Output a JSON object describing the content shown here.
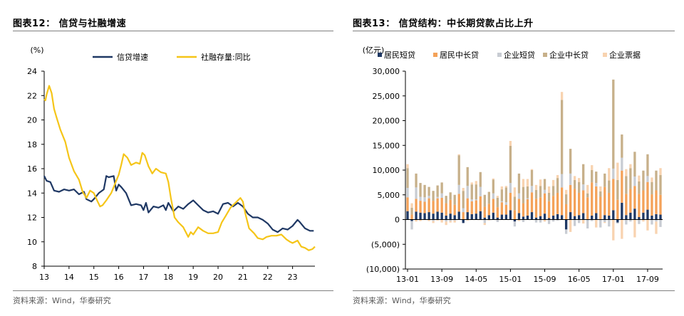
{
  "left": {
    "title": "图表12：  信贷与社融增速",
    "source": "资料来源：Wind，华泰研究"
  },
  "right": {
    "title": "图表13：  信贷结构：中长期贷款占比上升",
    "source": "资料来源：Wind，华泰研究"
  },
  "colors": {
    "navy": "#1f3864",
    "gold": "#f5c518",
    "orange": "#f4a259",
    "lightgray": "#c8ccd3",
    "tan": "#c7b08a",
    "peach": "#f8d3b0"
  },
  "chart_data": [
    {
      "type": "line",
      "ylabel": "(%)",
      "ylim": [
        8,
        24
      ],
      "yticks": [
        8,
        10,
        12,
        14,
        16,
        18,
        20,
        22,
        24
      ],
      "xlim": [
        2013,
        2023.9
      ],
      "xticks": [
        "13",
        "14",
        "15",
        "16",
        "17",
        "18",
        "19",
        "20",
        "21",
        "22",
        "23"
      ],
      "legend": "top",
      "series": [
        {
          "name": "信贷增速",
          "color": "#1f3864",
          "points": [
            [
              2013.0,
              15.4
            ],
            [
              2013.1,
              15.0
            ],
            [
              2013.25,
              14.9
            ],
            [
              2013.4,
              14.2
            ],
            [
              2013.6,
              14.1
            ],
            [
              2013.8,
              14.3
            ],
            [
              2014.0,
              14.2
            ],
            [
              2014.2,
              14.3
            ],
            [
              2014.4,
              13.9
            ],
            [
              2014.6,
              14.1
            ],
            [
              2014.7,
              13.5
            ],
            [
              2014.9,
              13.3
            ],
            [
              2015.0,
              13.5
            ],
            [
              2015.2,
              14.0
            ],
            [
              2015.4,
              14.3
            ],
            [
              2015.5,
              15.4
            ],
            [
              2015.6,
              15.3
            ],
            [
              2015.8,
              15.4
            ],
            [
              2015.9,
              14.2
            ],
            [
              2016.0,
              14.7
            ],
            [
              2016.1,
              14.5
            ],
            [
              2016.3,
              14.0
            ],
            [
              2016.5,
              13.0
            ],
            [
              2016.7,
              13.1
            ],
            [
              2016.9,
              13.0
            ],
            [
              2017.0,
              12.6
            ],
            [
              2017.1,
              13.2
            ],
            [
              2017.2,
              12.4
            ],
            [
              2017.4,
              12.9
            ],
            [
              2017.6,
              12.8
            ],
            [
              2017.8,
              13.0
            ],
            [
              2017.9,
              12.6
            ],
            [
              2018.0,
              13.2
            ],
            [
              2018.2,
              12.5
            ],
            [
              2018.4,
              12.9
            ],
            [
              2018.6,
              12.7
            ],
            [
              2018.8,
              13.1
            ],
            [
              2019.0,
              13.4
            ],
            [
              2019.2,
              13.0
            ],
            [
              2019.4,
              12.6
            ],
            [
              2019.6,
              12.4
            ],
            [
              2019.8,
              12.5
            ],
            [
              2020.0,
              12.3
            ],
            [
              2020.2,
              13.1
            ],
            [
              2020.4,
              13.2
            ],
            [
              2020.6,
              12.9
            ],
            [
              2020.8,
              13.2
            ],
            [
              2021.0,
              12.9
            ],
            [
              2021.2,
              12.3
            ],
            [
              2021.4,
              12.0
            ],
            [
              2021.6,
              12.0
            ],
            [
              2021.8,
              11.8
            ],
            [
              2022.0,
              11.5
            ],
            [
              2022.2,
              11.0
            ],
            [
              2022.4,
              10.8
            ],
            [
              2022.6,
              11.1
            ],
            [
              2022.8,
              11.0
            ],
            [
              2023.0,
              11.3
            ],
            [
              2023.2,
              11.8
            ],
            [
              2023.3,
              11.6
            ],
            [
              2023.5,
              11.1
            ],
            [
              2023.7,
              10.9
            ],
            [
              2023.85,
              10.9
            ]
          ]
        },
        {
          "name": "社融存量:同比",
          "color": "#f5c518",
          "points": [
            [
              2013.0,
              21.7
            ],
            [
              2013.05,
              21.6
            ],
            [
              2013.1,
              22.1
            ],
            [
              2013.2,
              22.8
            ],
            [
              2013.3,
              22.2
            ],
            [
              2013.4,
              20.9
            ],
            [
              2013.5,
              20.2
            ],
            [
              2013.65,
              19.2
            ],
            [
              2013.85,
              18.2
            ],
            [
              2014.0,
              16.9
            ],
            [
              2014.2,
              15.8
            ],
            [
              2014.4,
              15.1
            ],
            [
              2014.55,
              14.1
            ],
            [
              2014.7,
              13.6
            ],
            [
              2014.85,
              14.2
            ],
            [
              2015.0,
              14.0
            ],
            [
              2015.15,
              13.3
            ],
            [
              2015.25,
              12.9
            ],
            [
              2015.35,
              13.0
            ],
            [
              2015.5,
              13.4
            ],
            [
              2015.7,
              14.0
            ],
            [
              2015.9,
              15.0
            ],
            [
              2016.0,
              15.5
            ],
            [
              2016.1,
              16.3
            ],
            [
              2016.2,
              17.2
            ],
            [
              2016.35,
              16.9
            ],
            [
              2016.5,
              16.3
            ],
            [
              2016.7,
              16.5
            ],
            [
              2016.85,
              16.4
            ],
            [
              2016.95,
              17.3
            ],
            [
              2017.05,
              17.1
            ],
            [
              2017.2,
              16.2
            ],
            [
              2017.35,
              15.6
            ],
            [
              2017.5,
              16.0
            ],
            [
              2017.7,
              15.7
            ],
            [
              2017.9,
              15.6
            ],
            [
              2018.0,
              14.9
            ],
            [
              2018.1,
              13.6
            ],
            [
              2018.25,
              12.0
            ],
            [
              2018.4,
              11.6
            ],
            [
              2018.6,
              11.2
            ],
            [
              2018.8,
              10.4
            ],
            [
              2018.9,
              10.8
            ],
            [
              2019.0,
              10.6
            ],
            [
              2019.2,
              11.2
            ],
            [
              2019.4,
              10.9
            ],
            [
              2019.6,
              10.7
            ],
            [
              2019.8,
              10.7
            ],
            [
              2020.0,
              10.8
            ],
            [
              2020.15,
              11.6
            ],
            [
              2020.3,
              12.1
            ],
            [
              2020.5,
              12.8
            ],
            [
              2020.7,
              13.2
            ],
            [
              2020.9,
              13.6
            ],
            [
              2021.0,
              13.3
            ],
            [
              2021.1,
              12.3
            ],
            [
              2021.25,
              11.1
            ],
            [
              2021.45,
              10.7
            ],
            [
              2021.6,
              10.3
            ],
            [
              2021.8,
              10.2
            ],
            [
              2021.95,
              10.4
            ],
            [
              2022.15,
              10.5
            ],
            [
              2022.35,
              10.5
            ],
            [
              2022.55,
              10.6
            ],
            [
              2022.75,
              10.2
            ],
            [
              2022.9,
              10.0
            ],
            [
              2023.0,
              9.9
            ],
            [
              2023.2,
              10.1
            ],
            [
              2023.35,
              9.6
            ],
            [
              2023.5,
              9.5
            ],
            [
              2023.65,
              9.3
            ],
            [
              2023.8,
              9.4
            ],
            [
              2023.9,
              9.6
            ]
          ]
        }
      ]
    },
    {
      "type": "bar",
      "stacked": true,
      "ylabel": "(亿元)",
      "ylim": [
        -10000,
        30000
      ],
      "yticks": [
        -10000,
        -5000,
        0,
        5000,
        10000,
        15000,
        20000,
        25000,
        30000
      ],
      "yticklabels": [
        "(10,000)",
        "(5,000)",
        "0",
        "5,000",
        "10,000",
        "15,000",
        "20,000",
        "25,000",
        "30,000"
      ],
      "categories": [
        "13-01",
        "13-02",
        "13-03",
        "13-04",
        "13-05",
        "13-06",
        "13-07",
        "13-08",
        "13-09",
        "13-10",
        "13-11",
        "13-12",
        "14-01",
        "14-02",
        "14-03",
        "14-04",
        "14-05",
        "14-06",
        "14-07",
        "14-08",
        "14-09",
        "14-10",
        "14-11",
        "14-12",
        "15-01",
        "15-02",
        "15-03",
        "15-04",
        "15-05",
        "15-06",
        "15-07",
        "15-08",
        "15-09",
        "15-10",
        "15-11",
        "15-12",
        "16-01",
        "16-02",
        "16-03",
        "16-04",
        "16-05",
        "16-06",
        "16-07",
        "16-08",
        "16-09",
        "16-10",
        "16-11",
        "16-12",
        "17-01",
        "17-02",
        "17-03",
        "17-04",
        "17-05",
        "17-06",
        "17-07",
        "17-08",
        "17-09",
        "17-10",
        "17-11",
        "17-12"
      ],
      "xticks": [
        "13-01",
        "13-09",
        "14-05",
        "15-01",
        "15-09",
        "16-05",
        "17-01",
        "17-09"
      ],
      "legend": "top",
      "series": [
        {
          "name": "居民短贷",
          "color": "#1f3864",
          "values": [
            1700,
            -300,
            1600,
            1400,
            1300,
            1500,
            1200,
            1600,
            1400,
            800,
            1200,
            900,
            1600,
            -700,
            1500,
            1100,
            1200,
            1700,
            400,
            900,
            1400,
            400,
            1000,
            1000,
            1900,
            -400,
            1300,
            600,
            800,
            1500,
            400,
            700,
            1200,
            300,
            800,
            1100,
            900,
            -2000,
            1500,
            700,
            900,
            1300,
            -100,
            800,
            1300,
            100,
            900,
            800,
            1900,
            -600,
            3400,
            900,
            1400,
            2200,
            500,
            1400,
            2000,
            800,
            1100,
            1000
          ]
        },
        {
          "name": "居民中长贷",
          "color": "#f4a259",
          "values": [
            2800,
            1000,
            2600,
            2400,
            2300,
            2800,
            2600,
            2700,
            3000,
            2500,
            2800,
            2100,
            3600,
            1500,
            2800,
            2600,
            2700,
            3000,
            2200,
            2300,
            2800,
            2100,
            2500,
            2000,
            3500,
            1900,
            2900,
            2700,
            3300,
            4000,
            3800,
            3800,
            4100,
            3400,
            4000,
            4300,
            5600,
            3100,
            5500,
            5500,
            4500,
            4600,
            4500,
            6700,
            5400,
            4500,
            5700,
            4600,
            6300,
            4000,
            6500,
            4300,
            4800,
            4600,
            4700,
            4500,
            5600,
            4300,
            4800,
            4000
          ]
        },
        {
          "name": "企业短贷",
          "color": "#c8ccd3",
          "values": [
            1900,
            -1700,
            2300,
            800,
            900,
            500,
            -300,
            300,
            900,
            -400,
            -300,
            -200,
            1800,
            800,
            2500,
            400,
            200,
            1900,
            -700,
            -100,
            1100,
            -500,
            200,
            500,
            2000,
            -1000,
            1100,
            -500,
            200,
            1300,
            -600,
            -600,
            700,
            -900,
            -400,
            -200,
            2700,
            -900,
            2300,
            -1300,
            -700,
            1200,
            -1700,
            -300,
            700,
            -1600,
            -500,
            -1400,
            2100,
            -200,
            2600,
            -1000,
            -400,
            1900,
            -900,
            -100,
            1200,
            -1000,
            -400,
            -1500
          ]
        },
        {
          "name": "企业中长贷",
          "color": "#c7b08a",
          "values": [
            4000,
            1400,
            2800,
            2800,
            2500,
            1800,
            2000,
            2300,
            2200,
            1500,
            1500,
            2000,
            6000,
            3500,
            3800,
            3000,
            3000,
            3000,
            2400,
            2400,
            2800,
            1900,
            2400,
            3000,
            7500,
            2700,
            4000,
            3300,
            2400,
            3200,
            1800,
            2300,
            2200,
            1700,
            2000,
            3000,
            15000,
            2000,
            5000,
            1800,
            2200,
            4100,
            800,
            2500,
            2300,
            1100,
            2700,
            2500,
            18000,
            4000,
            4700,
            3600,
            4200,
            5000,
            2500,
            4000,
            4400,
            2500,
            4000,
            4000
          ]
        },
        {
          "name": "企业票据",
          "color": "#f8d3b0",
          "values": [
            800,
            900,
            -400,
            -300,
            -100,
            -300,
            -400,
            -200,
            -600,
            -700,
            -300,
            -400,
            200,
            600,
            -200,
            400,
            700,
            -100,
            -400,
            -100,
            200,
            400,
            600,
            300,
            1000,
            1900,
            -300,
            1600,
            1500,
            200,
            1000,
            1300,
            -400,
            1300,
            1200,
            600,
            1600,
            900,
            -2500,
            800,
            800,
            -800,
            1700,
            1000,
            -1600,
            1000,
            -200,
            2500,
            -4200,
            3500,
            -3900,
            1400,
            800,
            -3600,
            1200,
            -300,
            -2200,
            900,
            -2500,
            1400
          ]
        }
      ]
    }
  ]
}
